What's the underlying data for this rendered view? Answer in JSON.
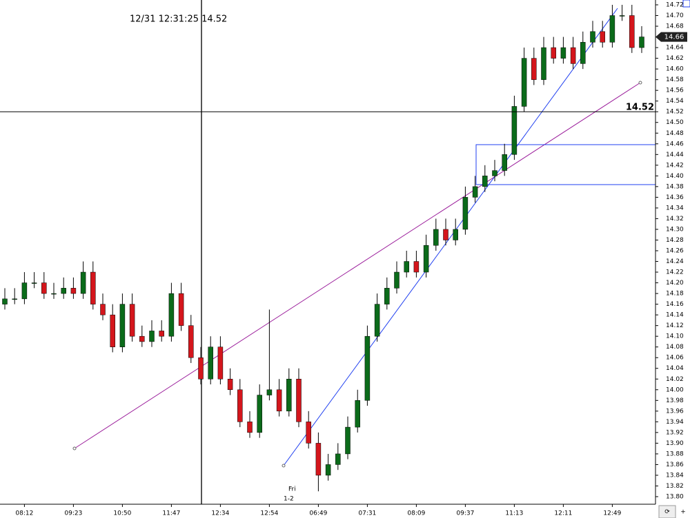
{
  "chart_data": {
    "type": "candlestick",
    "crosshair_label": "12/31 12:31:25 14.52",
    "crosshair_price": 14.52,
    "last_price": 14.66,
    "day_label": [
      "Fri",
      "1-2"
    ],
    "categories": [
      null,
      null,
      "08:12",
      null,
      null,
      null,
      null,
      "09:23",
      null,
      null,
      null,
      null,
      "10:50",
      null,
      null,
      null,
      null,
      "11:47",
      null,
      null,
      null,
      null,
      "12:34",
      null,
      null,
      null,
      null,
      "12:54",
      null,
      null,
      null,
      null,
      "06:49",
      null,
      null,
      null,
      null,
      "07:31",
      null,
      null,
      null,
      null,
      "08:09",
      null,
      null,
      null,
      null,
      "09:37",
      null,
      null,
      null,
      null,
      "11:13",
      null,
      null,
      null,
      null,
      "12:11",
      null,
      null,
      null,
      null,
      "12:49",
      null,
      null,
      null
    ],
    "open": [
      14.16,
      14.17,
      14.17,
      14.2,
      14.2,
      14.18,
      14.18,
      14.19,
      14.18,
      14.22,
      14.16,
      14.14,
      14.08,
      14.16,
      14.1,
      14.09,
      14.11,
      14.1,
      14.18,
      14.12,
      14.06,
      14.02,
      14.08,
      14.02,
      14.0,
      13.94,
      13.92,
      13.99,
      14.0,
      13.96,
      14.02,
      13.94,
      13.9,
      13.84,
      13.86,
      13.88,
      13.93,
      13.98,
      14.1,
      14.16,
      14.19,
      14.22,
      14.24,
      14.22,
      14.27,
      14.3,
      14.28,
      14.3,
      14.36,
      14.38,
      14.4,
      14.41,
      14.44,
      14.53,
      14.62,
      14.58,
      14.64,
      14.62,
      14.64,
      14.61,
      14.65,
      14.67,
      14.65,
      14.7,
      14.7,
      14.64
    ],
    "high": [
      14.19,
      14.19,
      14.22,
      14.22,
      14.22,
      14.2,
      14.21,
      14.21,
      14.24,
      14.24,
      14.18,
      14.16,
      14.18,
      14.18,
      14.12,
      14.13,
      14.13,
      14.2,
      14.2,
      14.14,
      14.08,
      14.1,
      14.1,
      14.04,
      14.02,
      13.96,
      14.01,
      14.15,
      14.02,
      14.04,
      14.04,
      13.96,
      13.92,
      13.88,
      13.9,
      13.95,
      14.0,
      14.12,
      14.18,
      14.21,
      14.24,
      14.26,
      14.26,
      14.29,
      14.32,
      14.32,
      14.32,
      14.38,
      14.4,
      14.42,
      14.43,
      14.46,
      14.55,
      14.64,
      14.64,
      14.66,
      14.66,
      14.66,
      14.66,
      14.67,
      14.69,
      14.69,
      14.72,
      14.72,
      14.72,
      14.68
    ],
    "low": [
      14.15,
      14.16,
      14.16,
      14.19,
      14.17,
      14.17,
      14.17,
      14.17,
      14.17,
      14.15,
      14.13,
      14.07,
      14.07,
      14.09,
      14.08,
      14.08,
      14.09,
      14.09,
      14.11,
      14.05,
      14.01,
      14.01,
      14.01,
      13.99,
      13.93,
      13.91,
      13.91,
      13.98,
      13.95,
      13.95,
      13.93,
      13.89,
      13.81,
      13.83,
      13.85,
      13.87,
      13.92,
      13.97,
      14.09,
      14.15,
      14.18,
      14.21,
      14.21,
      14.21,
      14.26,
      14.27,
      14.27,
      14.29,
      14.35,
      14.37,
      14.39,
      14.4,
      14.43,
      14.52,
      14.57,
      14.57,
      14.61,
      14.61,
      14.6,
      14.6,
      14.64,
      14.64,
      14.64,
      14.69,
      14.63,
      14.63
    ],
    "close": [
      14.17,
      14.17,
      14.2,
      14.2,
      14.18,
      14.18,
      14.19,
      14.18,
      14.22,
      14.16,
      14.14,
      14.08,
      14.16,
      14.1,
      14.09,
      14.11,
      14.1,
      14.18,
      14.12,
      14.06,
      14.02,
      14.08,
      14.02,
      14.0,
      13.94,
      13.92,
      13.99,
      14.0,
      13.96,
      14.02,
      13.94,
      13.9,
      13.84,
      13.86,
      13.88,
      13.93,
      13.98,
      14.1,
      14.16,
      14.19,
      14.22,
      14.24,
      14.22,
      14.27,
      14.3,
      14.28,
      14.3,
      14.36,
      14.38,
      14.4,
      14.41,
      14.44,
      14.53,
      14.62,
      14.58,
      14.64,
      14.62,
      14.64,
      14.61,
      14.65,
      14.67,
      14.65,
      14.7,
      14.7,
      14.64,
      14.66
    ],
    "up_color": "#0b6b1a",
    "down_color": "#d4161c",
    "ylim": [
      13.8,
      14.72
    ],
    "yticks": [
      {
        "value": 13.8,
        "label": "13.80"
      },
      13.82,
      13.84,
      13.86,
      13.88,
      {
        "value": 13.9,
        "label": "13.90"
      },
      13.92,
      13.94,
      13.96,
      13.98,
      {
        "value": 14,
        "label": "14.00"
      },
      14.02,
      14.04,
      14.06,
      14.08,
      {
        "value": 14.1,
        "label": "14.10"
      },
      14.12,
      14.14,
      14.16,
      14.18,
      {
        "value": 14.2,
        "label": "14.20"
      },
      14.22,
      14.24,
      14.26,
      14.28,
      {
        "value": 14.3,
        "label": "14.30"
      },
      14.32,
      14.34,
      14.36,
      14.38,
      {
        "value": 14.4,
        "label": "14.40"
      },
      14.42,
      14.44,
      14.46,
      14.48,
      {
        "value": 14.5,
        "label": "14.50"
      },
      14.52,
      14.54,
      14.56,
      14.58,
      {
        "value": 14.6,
        "label": "14.60"
      },
      14.62,
      14.64,
      14.66,
      14.68,
      {
        "value": 14.7,
        "label": "14.70"
      },
      14.72
    ]
  }
}
